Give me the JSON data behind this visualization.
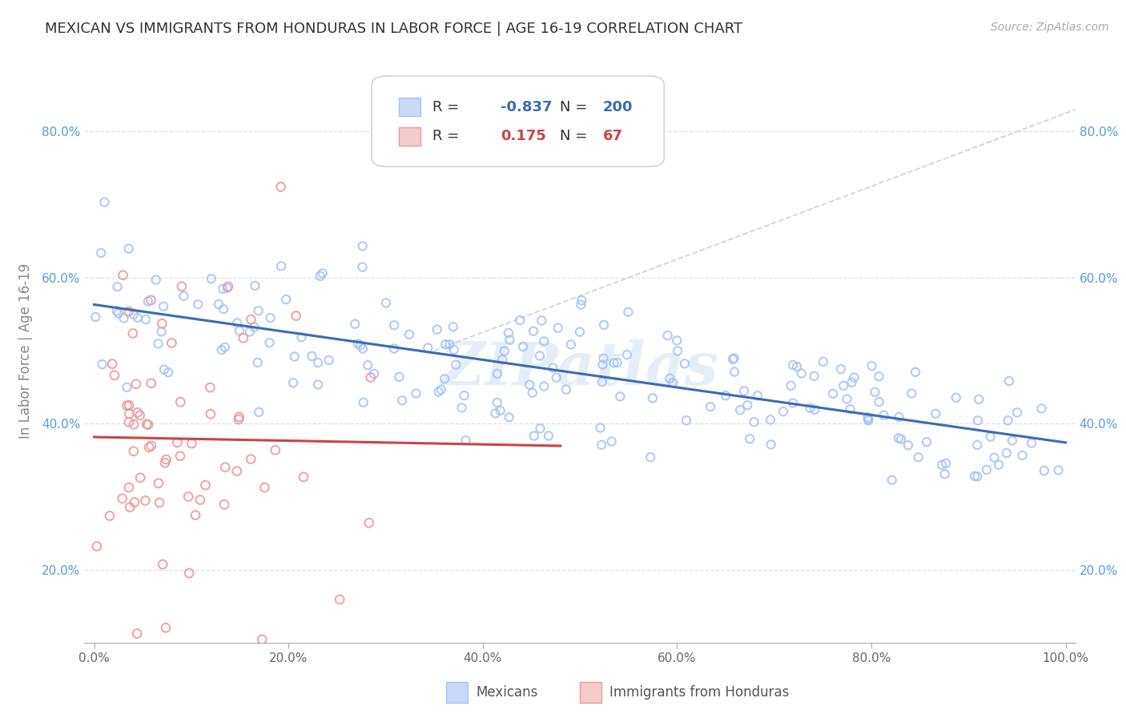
{
  "title": "MEXICAN VS IMMIGRANTS FROM HONDURAS IN LABOR FORCE | AGE 16-19 CORRELATION CHART",
  "source": "Source: ZipAtlas.com",
  "ylabel": "In Labor Force | Age 16-19",
  "xlim": [
    -0.01,
    1.01
  ],
  "ylim": [
    0.1,
    0.9
  ],
  "xtick_labels": [
    "0.0%",
    "20.0%",
    "40.0%",
    "60.0%",
    "80.0%",
    "100.0%"
  ],
  "xtick_vals": [
    0.0,
    0.2,
    0.4,
    0.6,
    0.8,
    1.0
  ],
  "ytick_labels": [
    "20.0%",
    "40.0%",
    "60.0%",
    "80.0%"
  ],
  "ytick_vals": [
    0.2,
    0.4,
    0.6,
    0.8
  ],
  "blue_color": "#a4c2f4",
  "pink_color": "#ea9999",
  "blue_line_color": "#3d6bb5",
  "pink_line_color": "#cc4444",
  "blue_R": "-0.837",
  "blue_N": "200",
  "pink_R": "0.175",
  "pink_N": "67",
  "watermark": "ZIPatlas",
  "background_color": "#ffffff",
  "grid_color": "#e0e0e0",
  "legend_R_color_blue": "#3d6bb5",
  "legend_R_color_pink": "#cc4444",
  "legend_N_color_blue": "#3d6bb5",
  "legend_N_color_pink": "#cc4444"
}
